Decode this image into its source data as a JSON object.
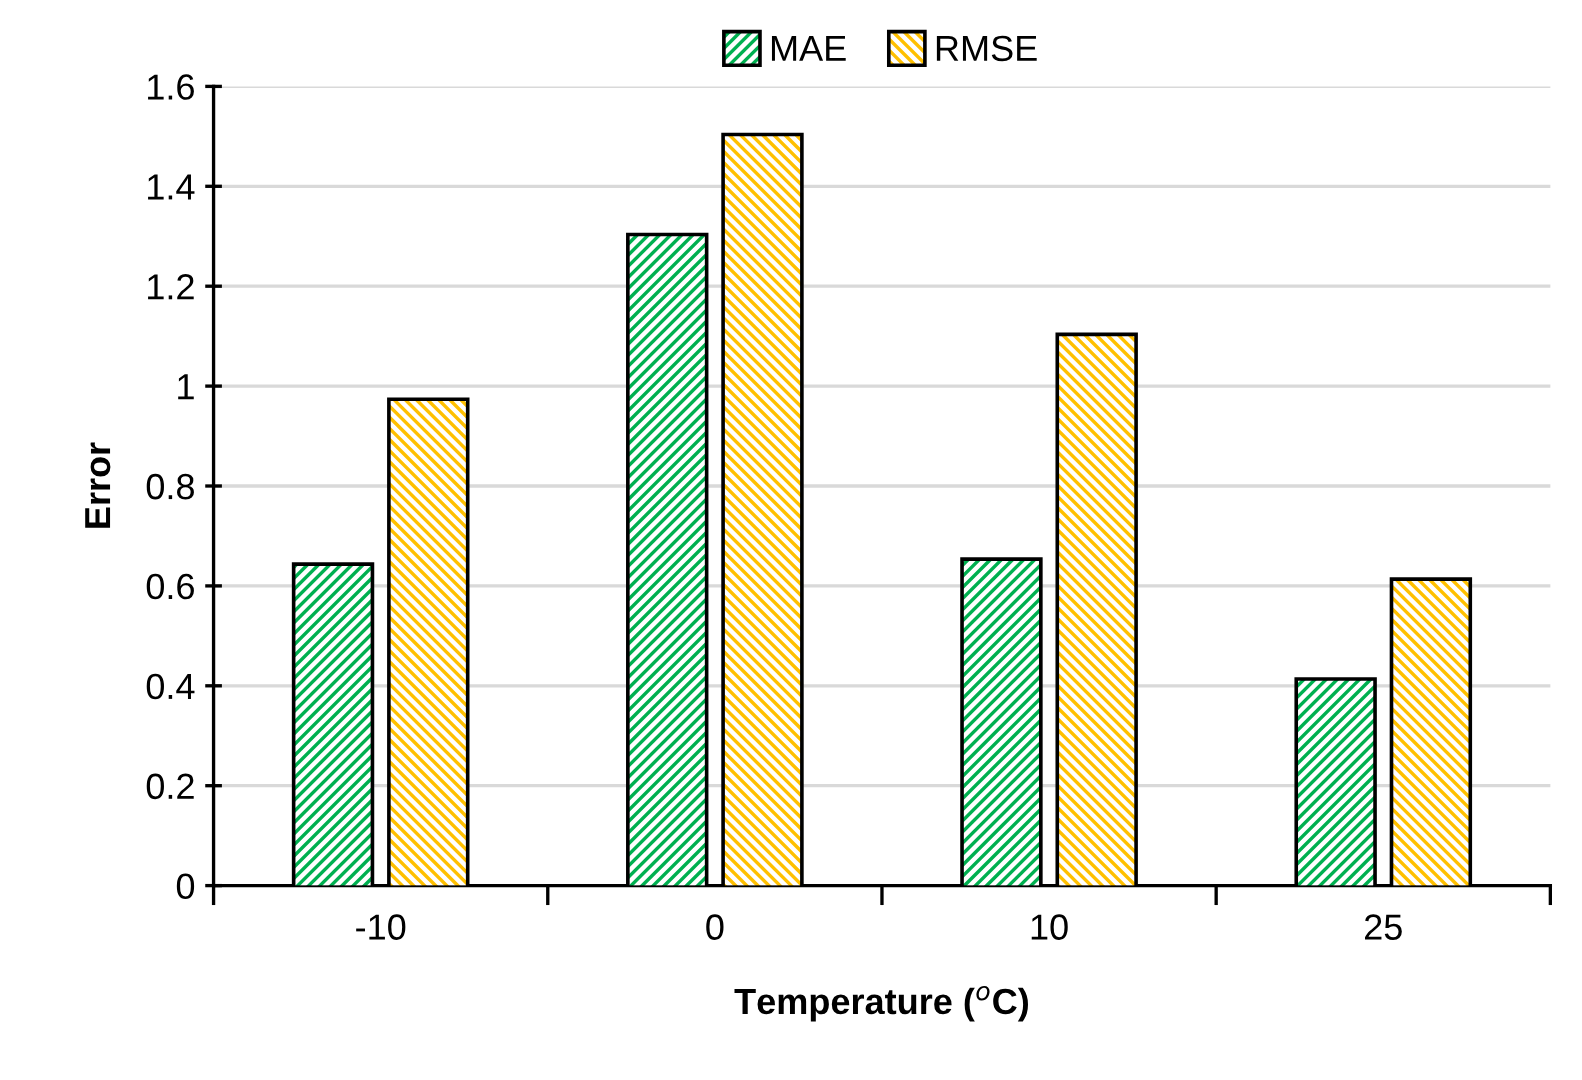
{
  "chart_data": {
    "type": "bar",
    "xlabel": "Temperature ($^{o}$C)",
    "ylabel": "Error",
    "categories": [
      "-10",
      "0",
      "10",
      "25"
    ],
    "series": [
      {
        "name": "MAE",
        "color": "#00b050",
        "values": [
          0.64,
          1.3,
          0.65,
          0.41
        ]
      },
      {
        "name": "RMSE",
        "color": "#ffc000",
        "values": [
          0.97,
          1.5,
          1.1,
          0.61
        ]
      }
    ],
    "ylim": [
      0,
      1.6
    ],
    "yticks": [
      0,
      0.2,
      0.4,
      0.6,
      0.8,
      1,
      1.2,
      1.4,
      1.6
    ],
    "grid": "y",
    "legend": "top"
  }
}
